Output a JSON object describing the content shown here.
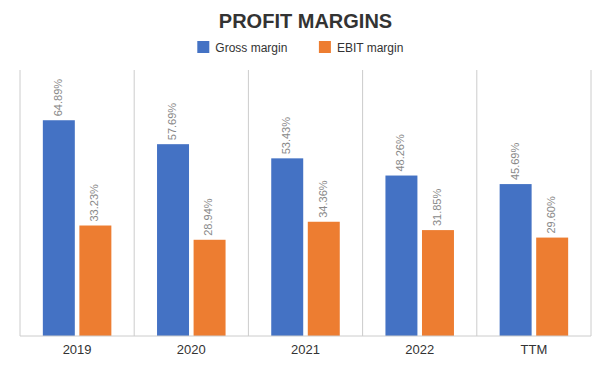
{
  "chart_data": {
    "type": "bar",
    "title": "PROFIT MARGINS",
    "categories": [
      "2019",
      "2020",
      "2021",
      "2022",
      "TTM"
    ],
    "series": [
      {
        "name": "Gross margin",
        "color": "#4472C4",
        "values": [
          64.89,
          57.69,
          53.43,
          48.26,
          45.69
        ],
        "value_labels": [
          "64.89%",
          "57.69%",
          "53.43%",
          "48.26%",
          "45.69%"
        ]
      },
      {
        "name": "EBIT margin",
        "color": "#ED7D31",
        "values": [
          33.23,
          28.94,
          34.36,
          31.85,
          29.6
        ],
        "value_labels": [
          "33.23%",
          "28.94%",
          "34.36%",
          "31.85%",
          "29.60%"
        ]
      }
    ],
    "ylim": [
      0,
      80
    ],
    "grid": false,
    "legend": "top",
    "data_labels": true,
    "tick_labels": "x"
  }
}
